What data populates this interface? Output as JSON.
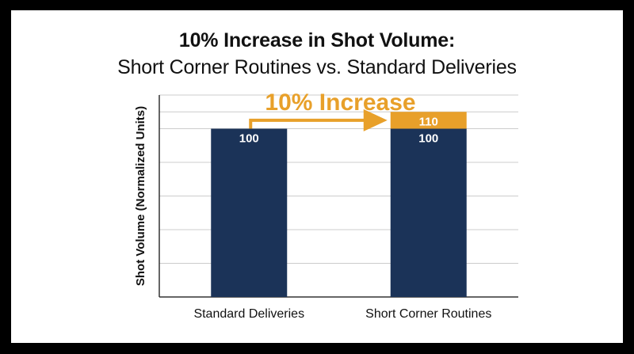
{
  "chart_data": {
    "type": "bar",
    "title": "10% Increase in Shot Volume:",
    "subtitle": "Short Corner Routines vs. Standard Deliveries",
    "xlabel": "",
    "ylabel": "Shot Volume (Normalized Units)",
    "categories": [
      "Standard Deliveries",
      "Short Corner Routines"
    ],
    "series": [
      {
        "values": [
          100,
          100
        ],
        "color": "#1b3358"
      },
      {
        "values": [
          0,
          10
        ],
        "color": "#e8a02a"
      }
    ],
    "data_labels": [
      {
        "category": 0,
        "text": "100",
        "color": "#ffffff"
      },
      {
        "category": 1,
        "text": "100",
        "color": "#ffffff"
      },
      {
        "category": 1,
        "text": "110",
        "color": "#ffffff"
      }
    ],
    "annotation": {
      "text": "10% Increase",
      "color": "#e8a02a"
    },
    "ylim": [
      0,
      120
    ],
    "yticks": [
      0,
      20,
      40,
      60,
      80,
      100,
      110,
      120
    ],
    "grid": true,
    "show_tick_labels": false,
    "colors": {
      "axis": "#333333",
      "grid": "#cccccc",
      "text": "#111111"
    }
  }
}
